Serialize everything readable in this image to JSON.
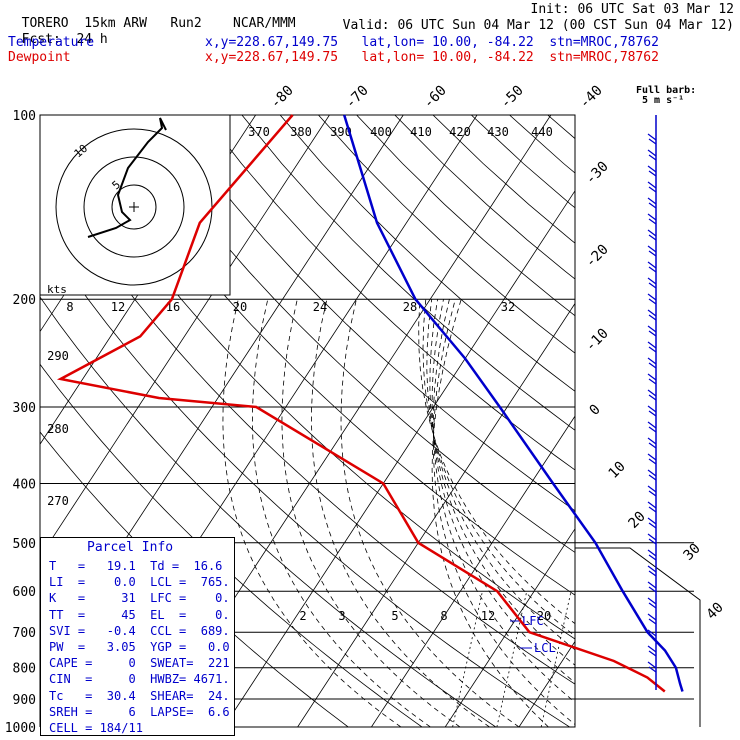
{
  "header": {
    "model": "TORERO",
    "resolution": "15km ARW",
    "run": "Run2",
    "source": "NCAR/MMM",
    "init": "Init: 06 UTC Sat 03 Mar 12",
    "fcst_label": "Fcst:",
    "fcst_value": "24 h",
    "valid": "Valid: 06 UTC Sun 04 Mar 12 (00 CST Sun 04 Mar 12)"
  },
  "legend": {
    "temperature": {
      "label": "Temperature",
      "info": "x,y=228.67,149.75   lat,lon= 10.00, -84.22  stn=MROC,78762",
      "color": "#0000cc"
    },
    "dewpoint": {
      "label": "Dewpoint",
      "info": "x,y=228.67,149.75   lat,lon= 10.00, -84.22  stn=MROC,78762",
      "color": "#dd0000"
    }
  },
  "barb_legend": {
    "line1": "Full barb:",
    "line2": "5 m s⁻¹"
  },
  "hodograph": {
    "kts_label": "kts",
    "ring_labels": [
      "10",
      "5"
    ]
  },
  "parcel": {
    "title": "Parcel Info",
    "rows": [
      "T   =   19.1  Td =  16.6",
      "LI  =    0.0  LCL =  765.",
      "K   =     31  LFC =    0.",
      "TT  =     45  EL  =    0.",
      "SVI =   -0.4  CCL =  689.",
      "PW  =   3.05  YGP =   0.0",
      "CAPE =     0  SWEAT=  221",
      "CIN  =     0  HWBZ= 4671.",
      "Tc   =  30.4  SHEAR=  24.",
      "SREH =     6  LAPSE=  6.6",
      "CELL = 184/11"
    ]
  },
  "level_labels": {
    "lfc": "LFC",
    "lcl": "LCL"
  },
  "chart_data": {
    "type": "line",
    "title": "",
    "y_axis": {
      "label": "",
      "scale": "log",
      "ticks": [
        100,
        200,
        300,
        400,
        500,
        600,
        700,
        800,
        900,
        1000
      ]
    },
    "x_axis": {
      "ticks_top": [
        -80,
        -70,
        -60,
        -50,
        -40
      ],
      "ticks_right": [
        -30,
        -20,
        -10,
        0,
        10,
        20,
        30,
        40
      ]
    },
    "theta_labels": [
      370,
      380,
      390,
      400,
      410,
      420,
      430,
      440,
      290,
      280,
      270
    ],
    "mixing_ratio_labels": [
      2,
      3,
      5,
      8,
      12,
      20
    ],
    "wet_bulb_labels": [
      8,
      12,
      16,
      20,
      24,
      28,
      32
    ],
    "series": [
      {
        "name": "Temperature",
        "color": "#0000cc",
        "points": [
          [
            100,
            -78
          ],
          [
            150,
            -64
          ],
          [
            200,
            -52
          ],
          [
            250,
            -40
          ],
          [
            300,
            -31
          ],
          [
            400,
            -17
          ],
          [
            500,
            -6
          ],
          [
            600,
            2
          ],
          [
            700,
            9
          ],
          [
            750,
            13
          ],
          [
            800,
            16
          ],
          [
            850,
            18
          ],
          [
            875,
            19
          ]
        ]
      },
      {
        "name": "Dewpoint",
        "color": "#dd0000",
        "points": [
          [
            100,
            -85
          ],
          [
            150,
            -88
          ],
          [
            200,
            -85
          ],
          [
            230,
            -86
          ],
          [
            270,
            -93
          ],
          [
            290,
            -78
          ],
          [
            300,
            -64
          ],
          [
            400,
            -40
          ],
          [
            500,
            -30
          ],
          [
            600,
            -15
          ],
          [
            700,
            -7
          ],
          [
            780,
            7
          ],
          [
            830,
            13
          ],
          [
            875,
            16.6
          ]
        ]
      }
    ]
  }
}
